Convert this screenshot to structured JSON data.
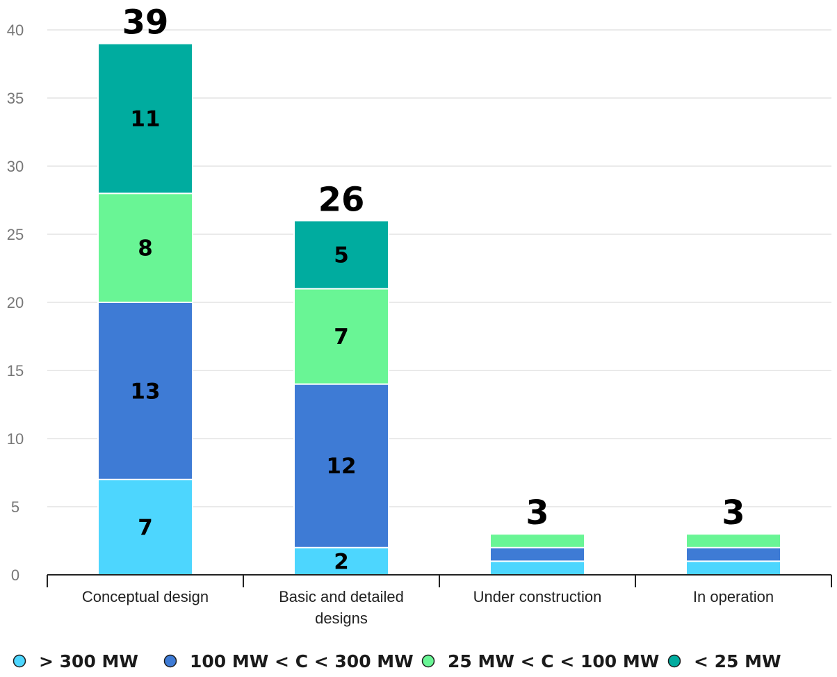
{
  "chart_data": {
    "type": "bar",
    "stacked": true,
    "categories": [
      [
        "Conceptual design"
      ],
      [
        "Basic and detailed",
        "designs"
      ],
      [
        "Under construction"
      ],
      [
        "In operation"
      ]
    ],
    "series": [
      {
        "name": "> 300 MW",
        "color": "#4dd6fe",
        "values": [
          7,
          2,
          1,
          1
        ],
        "labels": [
          "7",
          "2",
          "",
          ""
        ]
      },
      {
        "name": "100 MW < C < 300 MW",
        "color": "#3e7bd5",
        "values": [
          13,
          12,
          1,
          1
        ],
        "labels": [
          "13",
          "12",
          "",
          ""
        ]
      },
      {
        "name": "25 MW < C < 100 MW",
        "color": "#69f595",
        "values": [
          8,
          7,
          1,
          1
        ],
        "labels": [
          "8",
          "7",
          "",
          ""
        ]
      },
      {
        "name": "< 25 MW",
        "color": "#00ac9f",
        "values": [
          11,
          5,
          0,
          0
        ],
        "labels": [
          "11",
          "5",
          "",
          ""
        ]
      }
    ],
    "totals": [
      "39",
      "26",
      "3",
      "3"
    ],
    "ylim": [
      0,
      40
    ],
    "yticks": [
      "0",
      "5",
      "10",
      "15",
      "20",
      "25",
      "30",
      "35",
      "40"
    ],
    "grid": true,
    "legend": "bottom",
    "title": "",
    "xlabel": "",
    "ylabel": ""
  }
}
